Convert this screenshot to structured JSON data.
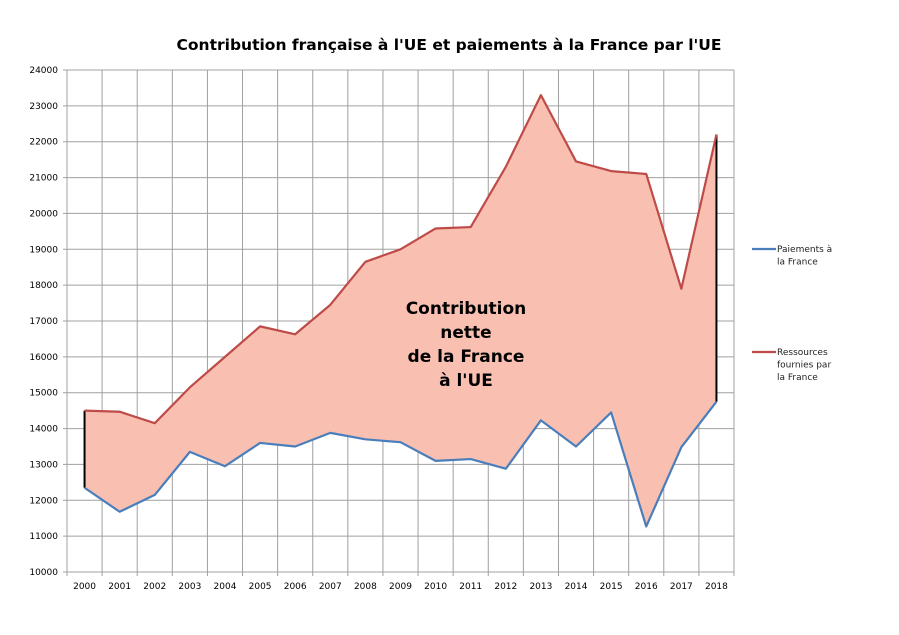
{
  "chart_data": {
    "type": "area",
    "title": "Contribution française à l'UE et paiements à la France par l'UE",
    "xlabel": "",
    "ylabel": "",
    "ylim": [
      10000,
      24000
    ],
    "ytick_step": 1000,
    "grid": true,
    "legend_placement": "right",
    "categories": [
      "2000",
      "2001",
      "2002",
      "2003",
      "2004",
      "2005",
      "2006",
      "2007",
      "2008",
      "2009",
      "2010",
      "2011",
      "2012",
      "2013",
      "2014",
      "2015",
      "2016",
      "2017",
      "2018"
    ],
    "series": [
      {
        "name": "Paiements à la France",
        "legend_lines": [
          "Paiements à",
          "la France"
        ],
        "color": "#4a7ebb",
        "values": [
          12350,
          11680,
          12150,
          13350,
          12950,
          13600,
          13500,
          13880,
          13700,
          13620,
          13100,
          13150,
          12880,
          14230,
          13500,
          14450,
          11270,
          13480,
          14750
        ]
      },
      {
        "name": "Ressources fournies par la France",
        "legend_lines": [
          "Ressources",
          "fournies par",
          "la France"
        ],
        "color": "#be4b48",
        "values": [
          14500,
          14470,
          14150,
          15150,
          16000,
          16850,
          16630,
          17450,
          18650,
          19000,
          19580,
          19620,
          21300,
          23300,
          21450,
          21180,
          21100,
          17900,
          22200
        ]
      }
    ],
    "fill_color": "#f9c0b2",
    "annotation": [
      "Contribution",
      "nette",
      "de la France",
      "à l'UE"
    ]
  }
}
